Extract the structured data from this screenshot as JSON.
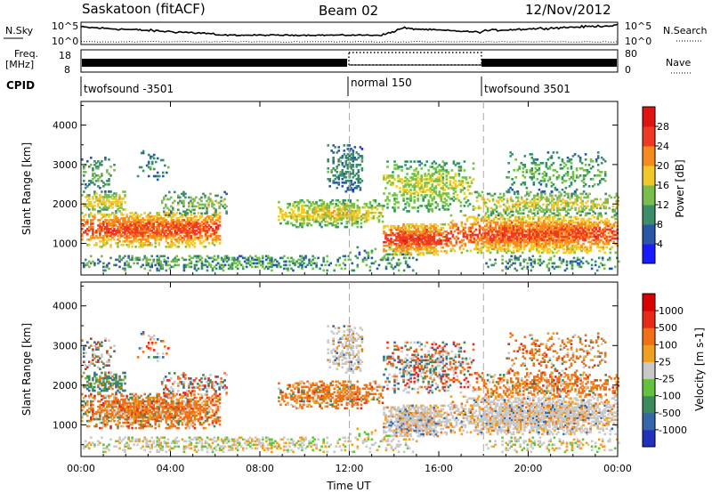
{
  "header": {
    "station": "Saskatoon (fitACF)",
    "beam": "Beam 02",
    "date": "12/Nov/2012"
  },
  "top_panels": {
    "nsky_label": "N.Sky",
    "nsky_ticks": [
      "10^5",
      "10^0"
    ],
    "nsearch_label": "N.Search",
    "freq_label_1": "Freq.",
    "freq_label_2": "[MHz]",
    "freq_ticks": [
      "18",
      "8"
    ],
    "nave_label": "Nave",
    "nave_ticks": [
      "80",
      "0"
    ],
    "cpid_label": "CPID",
    "cpid_segments": [
      "twofsound -3501",
      "normal 150",
      "twofsound 3501"
    ]
  },
  "chart_data": [
    {
      "type": "heatmap",
      "name": "power",
      "ylabel": "Slant Range [km]",
      "yticks": [
        1000,
        2000,
        3000,
        4000
      ],
      "ylim": [
        200,
        4600
      ],
      "xlim": [
        0,
        24
      ],
      "xticks": [
        0,
        4,
        8,
        12,
        16,
        20,
        24
      ],
      "colorbar": {
        "label": "Power [dB]",
        "ticks": [
          "4",
          "8",
          "12",
          "16",
          "20",
          "24",
          "28"
        ],
        "colors": [
          "#1a1aff",
          "#2a56a8",
          "#3c8e68",
          "#79bd4d",
          "#f0c828",
          "#f58a1e",
          "#ee3a24",
          "#e01212"
        ]
      }
    },
    {
      "type": "heatmap",
      "name": "velocity",
      "ylabel": "Slant Range [km]",
      "yticks": [
        1000,
        2000,
        3000,
        4000
      ],
      "ylim": [
        200,
        4600
      ],
      "xlim": [
        0,
        24
      ],
      "xticks": [
        0,
        4,
        8,
        12,
        16,
        20,
        24
      ],
      "xticklabels": [
        "00:00",
        "04:00",
        "08:00",
        "12:00",
        "16:00",
        "20:00",
        "00:00"
      ],
      "xlabel": "Time UT",
      "colorbar": {
        "label": "Velocity [m s-1]",
        "ticks": [
          "1000",
          "500",
          "100",
          "25",
          "-25",
          "-100",
          "-500",
          "-1000"
        ],
        "colors": [
          "#2233bb",
          "#3366aa",
          "#3d8b5b",
          "#66c040",
          "#c8c8c8",
          "#f0a020",
          "#f07018",
          "#e82818",
          "#d80000"
        ]
      }
    }
  ]
}
